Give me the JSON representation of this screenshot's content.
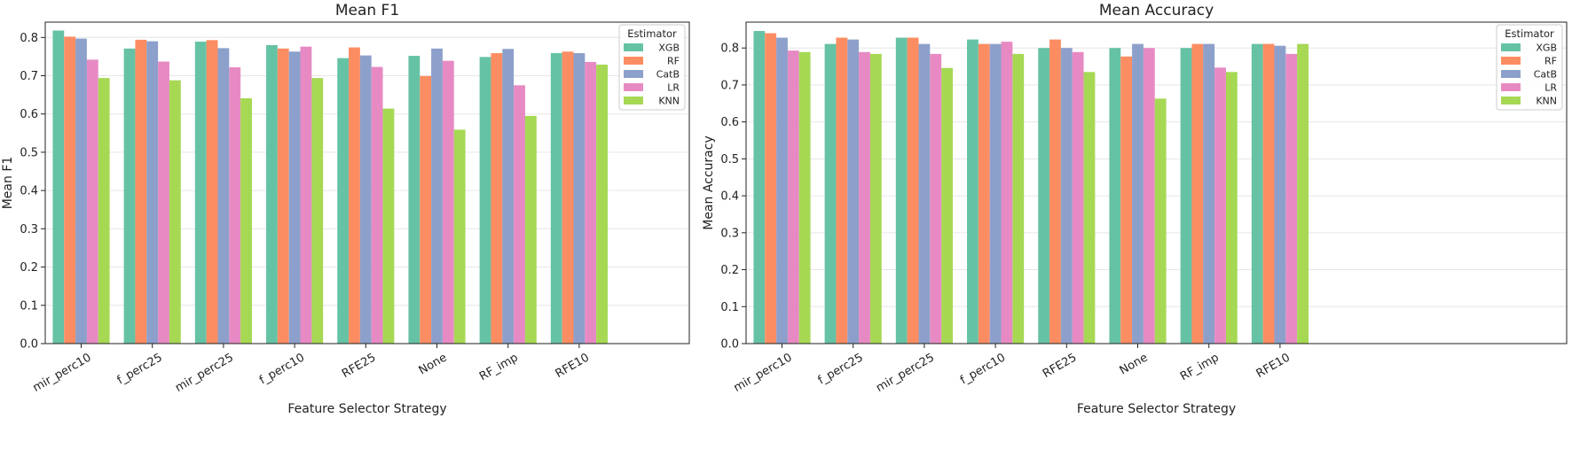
{
  "chart_data": [
    {
      "type": "bar",
      "title": "Mean F1",
      "xlabel": "Feature Selector Strategy",
      "ylabel": "Mean F1",
      "ylim": [
        0,
        0.84
      ],
      "yticks": [
        "0.0",
        "0.1",
        "0.2",
        "0.3",
        "0.4",
        "0.5",
        "0.6",
        "0.7",
        "0.8"
      ],
      "grid": "horizontal",
      "legend": {
        "title": "Estimator",
        "placement": "top-right"
      },
      "categories": [
        "mir_perc10",
        "f_perc25",
        "mir_perc25",
        "f_perc10",
        "RFE25",
        "None",
        "RF_imp",
        "RFE10"
      ],
      "series": [
        {
          "name": "XGB",
          "color": "#66c2a5",
          "values": [
            0.818,
            0.771,
            0.789,
            0.78,
            0.746,
            0.752,
            0.749,
            0.759
          ]
        },
        {
          "name": "RF",
          "color": "#fc8d62",
          "values": [
            0.802,
            0.794,
            0.793,
            0.771,
            0.774,
            0.699,
            0.759,
            0.763
          ]
        },
        {
          "name": "CatB",
          "color": "#8da0cb",
          "values": [
            0.797,
            0.79,
            0.772,
            0.763,
            0.753,
            0.771,
            0.77,
            0.759
          ]
        },
        {
          "name": "LR",
          "color": "#e78ac3",
          "values": [
            0.742,
            0.737,
            0.722,
            0.776,
            0.723,
            0.739,
            0.675,
            0.736
          ]
        },
        {
          "name": "KNN",
          "color": "#a6d854",
          "values": [
            0.694,
            0.688,
            0.641,
            0.694,
            0.614,
            0.559,
            0.595,
            0.729
          ]
        }
      ]
    },
    {
      "type": "bar",
      "title": "Mean Accuracy",
      "xlabel": "Feature Selector Strategy",
      "ylabel": "Mean Accuracy",
      "ylim": [
        0,
        0.87
      ],
      "yticks": [
        "0.0",
        "0.1",
        "0.2",
        "0.3",
        "0.4",
        "0.5",
        "0.6",
        "0.7",
        "0.8"
      ],
      "grid": "horizontal",
      "legend": {
        "title": "Estimator",
        "placement": "top-right"
      },
      "categories": [
        "mir_perc10",
        "f_perc25",
        "mir_perc25",
        "f_perc10",
        "RFE25",
        "None",
        "RF_imp",
        "RFE10"
      ],
      "series": [
        {
          "name": "XGB",
          "color": "#66c2a5",
          "values": [
            0.846,
            0.811,
            0.828,
            0.823,
            0.8,
            0.8,
            0.8,
            0.811
          ]
        },
        {
          "name": "RF",
          "color": "#fc8d62",
          "values": [
            0.84,
            0.828,
            0.828,
            0.811,
            0.823,
            0.777,
            0.811,
            0.811
          ]
        },
        {
          "name": "CatB",
          "color": "#8da0cb",
          "values": [
            0.828,
            0.823,
            0.811,
            0.811,
            0.8,
            0.811,
            0.811,
            0.806
          ]
        },
        {
          "name": "LR",
          "color": "#e78ac3",
          "values": [
            0.793,
            0.789,
            0.784,
            0.817,
            0.789,
            0.8,
            0.747,
            0.784
          ]
        },
        {
          "name": "KNN",
          "color": "#a6d854",
          "values": [
            0.789,
            0.784,
            0.746,
            0.784,
            0.735,
            0.663,
            0.735,
            0.811
          ]
        }
      ]
    }
  ]
}
